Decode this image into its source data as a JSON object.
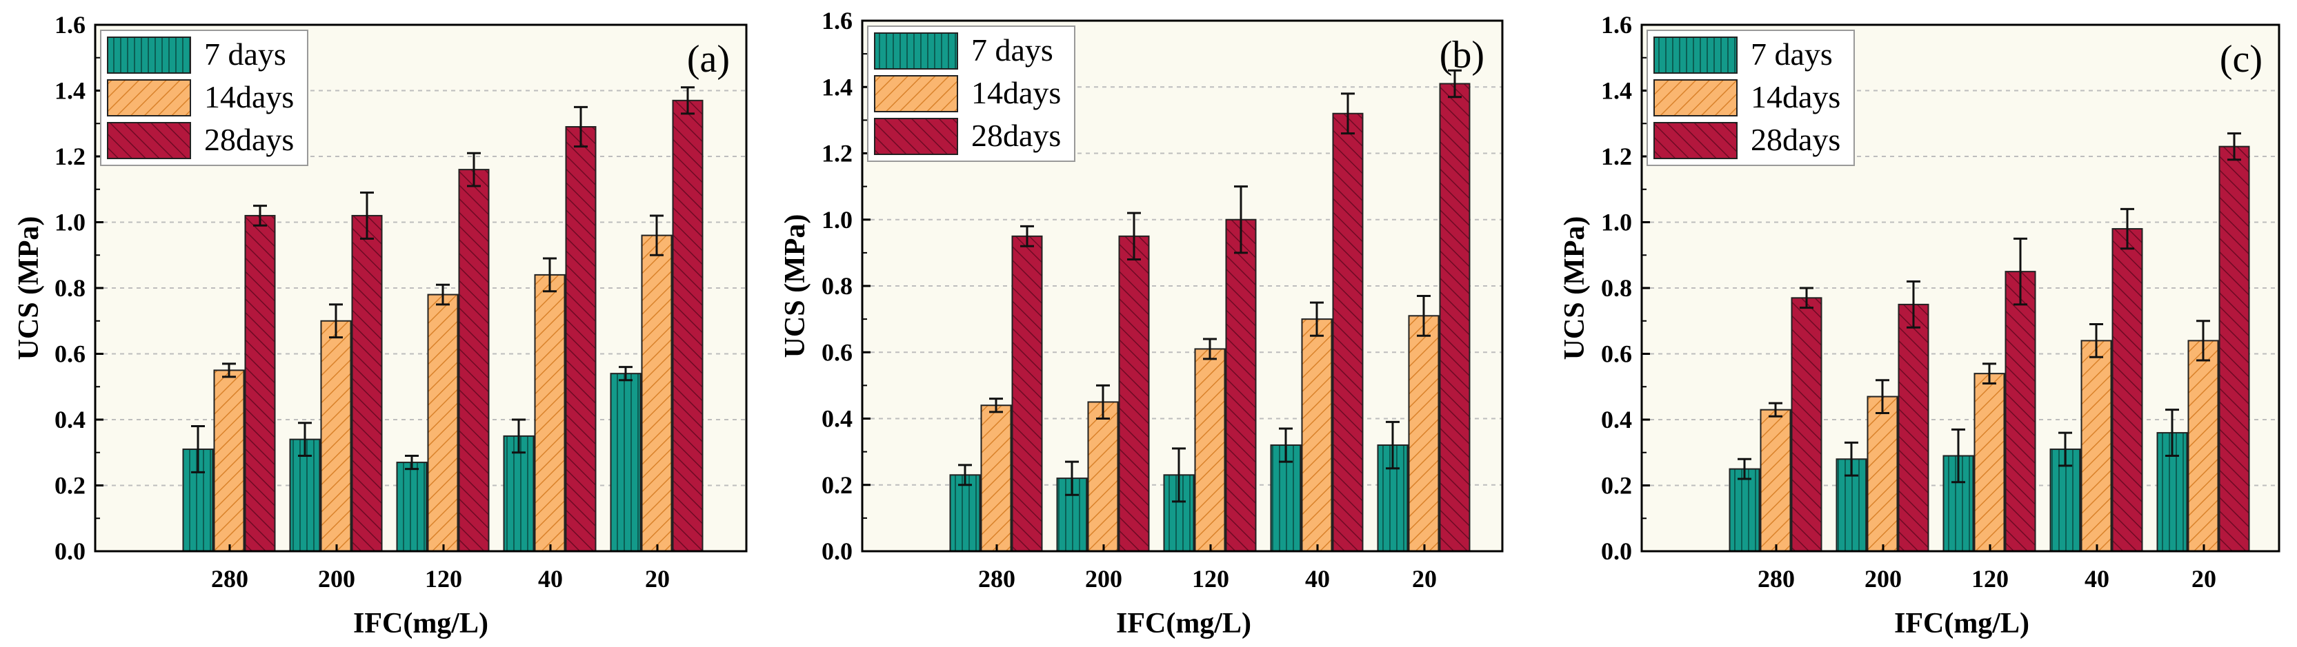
{
  "chart_data": [
    {
      "type": "bar",
      "panel_label": "(a)",
      "xlabel": "IFC(mg/L)",
      "ylabel": "UCS (MPa)",
      "ylim": [
        0,
        1.6
      ],
      "yticks": [
        "0.0",
        "0.2",
        "0.4",
        "0.6",
        "0.8",
        "1.0",
        "1.2",
        "1.4",
        "1.6"
      ],
      "categories": [
        "280",
        "200",
        "120",
        "40",
        "20"
      ],
      "legend_position": "top-left",
      "series": [
        {
          "name": "7 days",
          "values": [
            0.31,
            0.34,
            0.27,
            0.35,
            0.54
          ],
          "errors": [
            0.07,
            0.05,
            0.02,
            0.05,
            0.02
          ]
        },
        {
          "name": "14days",
          "values": [
            0.55,
            0.7,
            0.78,
            0.84,
            0.96
          ],
          "errors": [
            0.02,
            0.05,
            0.03,
            0.05,
            0.06
          ]
        },
        {
          "name": "28days",
          "values": [
            1.02,
            1.02,
            1.16,
            1.29,
            1.37
          ],
          "errors": [
            0.03,
            0.07,
            0.05,
            0.06,
            0.04
          ]
        }
      ]
    },
    {
      "type": "bar",
      "panel_label": "(b)",
      "xlabel": "IFC(mg/L)",
      "ylabel": "UCS (MPa)",
      "ylim": [
        0,
        1.6
      ],
      "yticks": [
        "0.0",
        "0.2",
        "0.4",
        "0.6",
        "0.8",
        "1.0",
        "1.2",
        "1.4",
        "1.6"
      ],
      "categories": [
        "280",
        "200",
        "120",
        "40",
        "20"
      ],
      "legend_position": "top-left",
      "series": [
        {
          "name": "7 days",
          "values": [
            0.23,
            0.22,
            0.23,
            0.32,
            0.32
          ],
          "errors": [
            0.03,
            0.05,
            0.08,
            0.05,
            0.07
          ]
        },
        {
          "name": "14days",
          "values": [
            0.44,
            0.45,
            0.61,
            0.7,
            0.71
          ],
          "errors": [
            0.02,
            0.05,
            0.03,
            0.05,
            0.06
          ]
        },
        {
          "name": "28days",
          "values": [
            0.95,
            0.95,
            1.0,
            1.32,
            1.41
          ],
          "errors": [
            0.03,
            0.07,
            0.1,
            0.06,
            0.04
          ]
        }
      ]
    },
    {
      "type": "bar",
      "panel_label": "(c)",
      "xlabel": "IFC(mg/L)",
      "ylabel": "UCS (MPa)",
      "ylim": [
        0,
        1.6
      ],
      "yticks": [
        "0.0",
        "0.2",
        "0.4",
        "0.6",
        "0.8",
        "1.0",
        "1.2",
        "1.4",
        "1.6"
      ],
      "categories": [
        "280",
        "200",
        "120",
        "40",
        "20"
      ],
      "legend_position": "top-left",
      "series": [
        {
          "name": "7 days",
          "values": [
            0.25,
            0.28,
            0.29,
            0.31,
            0.36
          ],
          "errors": [
            0.03,
            0.05,
            0.08,
            0.05,
            0.07
          ]
        },
        {
          "name": "14days",
          "values": [
            0.43,
            0.47,
            0.54,
            0.64,
            0.64
          ],
          "errors": [
            0.02,
            0.05,
            0.03,
            0.05,
            0.06
          ]
        },
        {
          "name": "28days",
          "values": [
            0.77,
            0.75,
            0.85,
            0.98,
            1.23
          ],
          "errors": [
            0.03,
            0.07,
            0.1,
            0.06,
            0.04
          ]
        }
      ]
    }
  ],
  "colors": {
    "plot_background": "#fbfaf0",
    "series_fill": [
      "#139a8a",
      "#fab670",
      "#b3173d"
    ],
    "frame": "#000000",
    "grid": "#bdbdbd"
  }
}
